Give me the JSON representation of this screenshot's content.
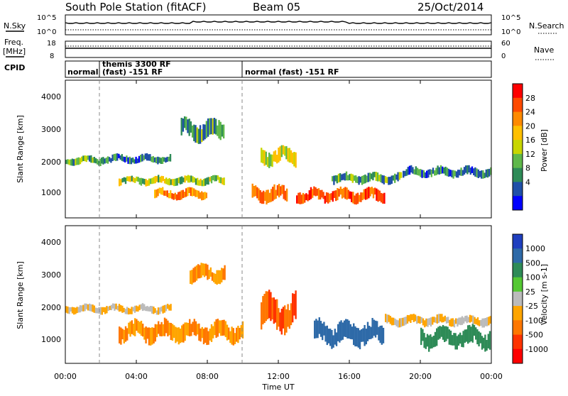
{
  "header": {
    "station": "South Pole Station (fitACF)",
    "beam": "Beam 05",
    "date": "25/Oct/2014"
  },
  "aux": {
    "nsky_label": "N.Sky",
    "nsearch_label": "N.Search",
    "freq_label_1": "Freq.",
    "freq_label_2": "[MHz]",
    "nave_label": "Nave",
    "cpid_label": "CPID",
    "nsky_ticks": [
      "10^5",
      "10^0"
    ],
    "nsearch_ticks": [
      "10^5",
      "10^0"
    ],
    "freq_ticks": [
      "18",
      "8"
    ],
    "nave_ticks": [
      "60",
      "0"
    ]
  },
  "cpid": {
    "segments": [
      {
        "lines": [
          "normal"
        ]
      },
      {
        "lines": [
          "themis 3300 RF",
          "(fast) -151 RF"
        ]
      },
      {
        "lines": [
          "normal (fast) -151 RF"
        ]
      }
    ],
    "switch_times_h": [
      2.1,
      10.0
    ]
  },
  "colorbars": {
    "power": {
      "label": "Power [dB]",
      "ticks": [
        "28",
        "24",
        "20",
        "16",
        "12",
        "8",
        "4"
      ],
      "colors": [
        "#ff0000",
        "#ff4a00",
        "#ff8a00",
        "#ffc000",
        "#c8d600",
        "#5fb84a",
        "#2e8b57",
        "#1f4fa8",
        "#0000ff"
      ]
    },
    "velocity": {
      "label": "Velocity [m s-1]",
      "ticks": [
        "1000",
        "500",
        "100",
        "25",
        "-25",
        "-100",
        "-500",
        "-1000"
      ],
      "colors": [
        "#1f3fbf",
        "#2e6aa8",
        "#2e8b57",
        "#55c833",
        "#bbbbbb",
        "#ffa500",
        "#ff7700",
        "#ff3300",
        "#ff0000"
      ]
    }
  },
  "axes": {
    "ylabel": "Slant Range [km]",
    "xlabel": "Time UT",
    "y_ticks": [
      "4000",
      "3000",
      "2000",
      "1000"
    ],
    "x_ticks": [
      "00:00",
      "04:00",
      "08:00",
      "12:00",
      "16:00",
      "20:00",
      "00:00"
    ]
  },
  "chart_data": {
    "type": "heatmap",
    "x_range_hours": [
      0,
      24
    ],
    "y_range_km": [
      180,
      4600
    ],
    "panels": [
      {
        "quantity": "Power [dB]",
        "bands": [
          {
            "t": [
              0,
              2
            ],
            "r": [
              1900,
              2150
            ],
            "value": 10
          },
          {
            "t": [
              2,
              6
            ],
            "r": [
              1950,
              2200
            ],
            "value": 8
          },
          {
            "t": [
              3,
              9
            ],
            "r": [
              1250,
              1500
            ],
            "value": 12
          },
          {
            "t": [
              5,
              8
            ],
            "r": [
              800,
              1100
            ],
            "value": 20
          },
          {
            "t": [
              6.5,
              9
            ],
            "r": [
              2700,
              3300
            ],
            "value": 10
          },
          {
            "t": [
              10.5,
              12.5
            ],
            "r": [
              700,
              1200
            ],
            "value": 22
          },
          {
            "t": [
              11,
              13
            ],
            "r": [
              1900,
              2400
            ],
            "value": 14
          },
          {
            "t": [
              13,
              18
            ],
            "r": [
              700,
              1100
            ],
            "value": 24
          },
          {
            "t": [
              15,
              19
            ],
            "r": [
              1300,
              1600
            ],
            "value": 10
          },
          {
            "t": [
              19,
              24
            ],
            "r": [
              1500,
              1800
            ],
            "value": 8
          }
        ]
      },
      {
        "quantity": "Velocity [m s-1]",
        "bands": [
          {
            "t": [
              0,
              6
            ],
            "r": [
              1800,
              2050
            ],
            "value": -25
          },
          {
            "t": [
              3,
              10
            ],
            "r": [
              900,
              1500
            ],
            "value": -100
          },
          {
            "t": [
              7,
              9
            ],
            "r": [
              2800,
              3300
            ],
            "value": -100
          },
          {
            "t": [
              11,
              13
            ],
            "r": [
              1300,
              2300
            ],
            "value": -500
          },
          {
            "t": [
              14,
              18
            ],
            "r": [
              800,
              1500
            ],
            "value": 500
          },
          {
            "t": [
              18,
              24
            ],
            "r": [
              1400,
              1700
            ],
            "value": -25
          },
          {
            "t": [
              20,
              24
            ],
            "r": [
              700,
              1300
            ],
            "value": 100
          }
        ]
      }
    ]
  }
}
